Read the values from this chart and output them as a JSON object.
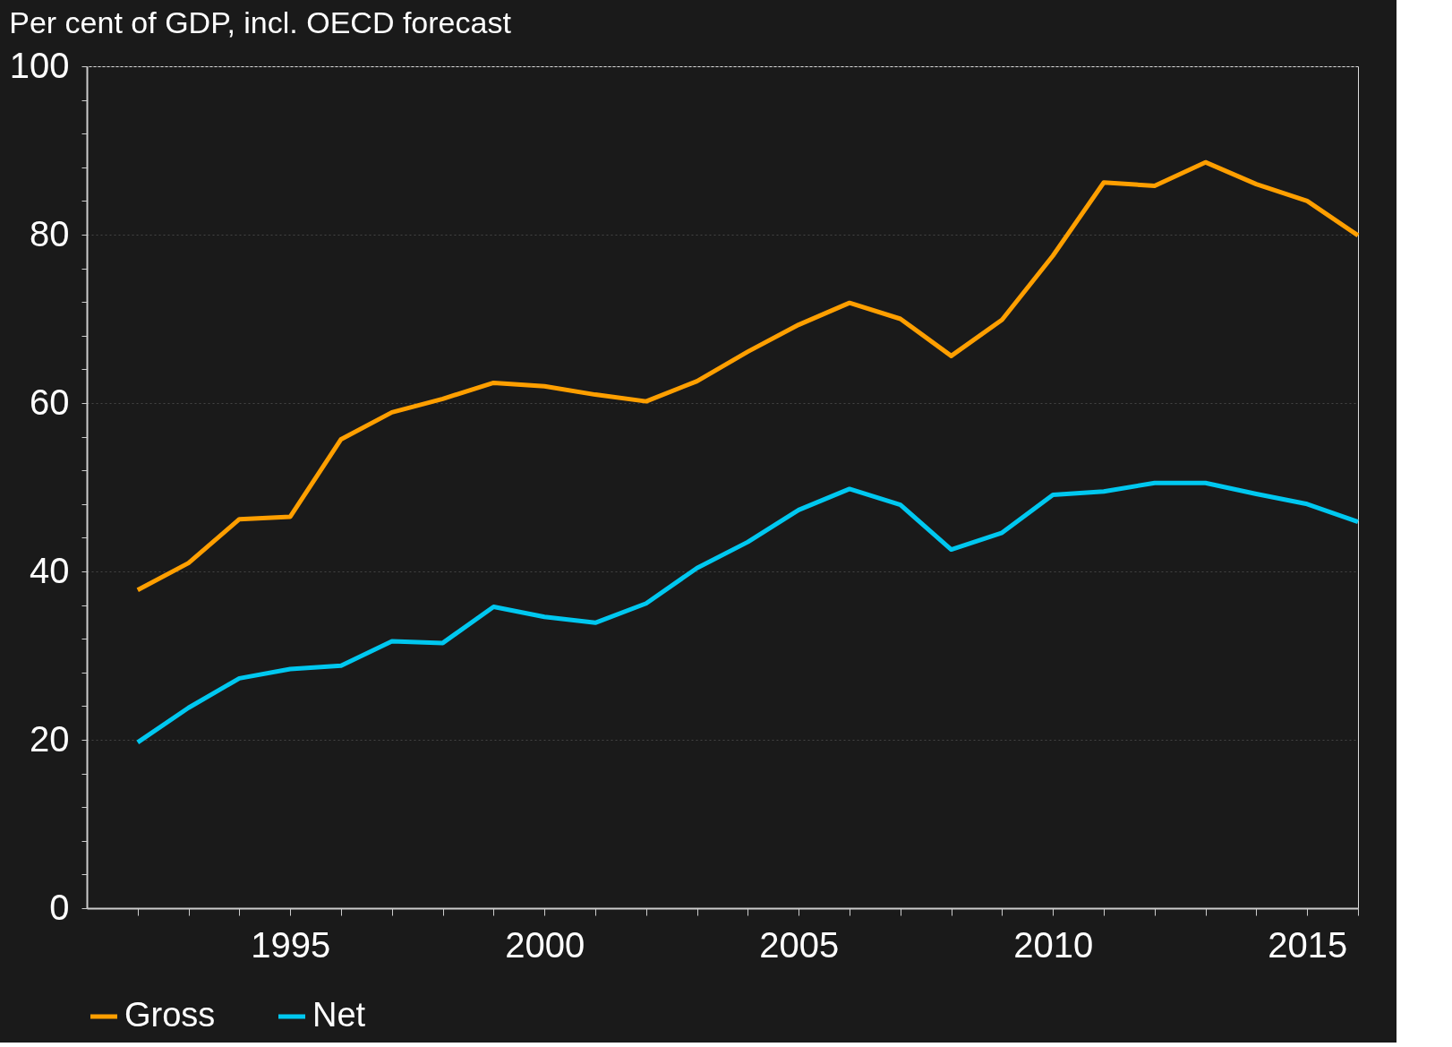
{
  "chart_data": {
    "type": "line",
    "title": "Per cent of GDP, incl. OECD forecast",
    "x": [
      1992,
      1993,
      1994,
      1995,
      1996,
      1997,
      1998,
      1999,
      2000,
      2001,
      2002,
      2003,
      2004,
      2005,
      2006,
      2007,
      2008,
      2009,
      2010,
      2011,
      2012,
      2013,
      2014,
      2015,
      2016
    ],
    "series": [
      {
        "name": "Gross",
        "color": "#ff9f00",
        "values": [
          37.8,
          41,
          46.2,
          46.5,
          55.7,
          58.9,
          60.5,
          62.4,
          62.0,
          61.0,
          60.2,
          62.6,
          66.1,
          69.3,
          71.9,
          70.0,
          65.6,
          69.9,
          77.5,
          86.2,
          85.8,
          88.6,
          86.0,
          84.0,
          79.9
        ]
      },
      {
        "name": "Net",
        "color": "#00c8f0",
        "values": [
          19.7,
          23.8,
          27.3,
          28.4,
          28.8,
          31.7,
          31.5,
          35.8,
          34.6,
          33.9,
          36.2,
          40.4,
          43.5,
          47.3,
          49.8,
          47.9,
          42.6,
          44.6,
          49.1,
          49.5,
          50.5,
          50.5,
          49.2,
          48.0,
          45.9
        ]
      }
    ],
    "xlim": [
      1991,
      2016
    ],
    "xticks": [
      {
        "value": 1992,
        "label": null
      },
      {
        "value": 1993,
        "label": null
      },
      {
        "value": 1994,
        "label": null
      },
      1995,
      {
        "value": 1996,
        "label": null
      },
      {
        "value": 1997,
        "label": null
      },
      {
        "value": 1998,
        "label": null
      },
      {
        "value": 1999,
        "label": null
      },
      2000,
      {
        "value": 2001,
        "label": null
      },
      {
        "value": 2002,
        "label": null
      },
      {
        "value": 2003,
        "label": null
      },
      {
        "value": 2004,
        "label": null
      },
      2005,
      {
        "value": 2006,
        "label": null
      },
      {
        "value": 2007,
        "label": null
      },
      {
        "value": 2008,
        "label": null
      },
      {
        "value": 2009,
        "label": null
      },
      2010,
      {
        "value": 2011,
        "label": null
      },
      {
        "value": 2012,
        "label": null
      },
      {
        "value": 2013,
        "label": null
      },
      {
        "value": 2014,
        "label": null
      },
      2015,
      {
        "value": 2016,
        "label": null
      }
    ],
    "ylim": [
      0,
      100
    ],
    "yticks": [
      0,
      {
        "value": 4,
        "label": null
      },
      {
        "value": 8,
        "label": null
      },
      {
        "value": 12,
        "label": null
      },
      {
        "value": 16,
        "label": null
      },
      20,
      {
        "value": 24,
        "label": null
      },
      {
        "value": 28,
        "label": null
      },
      {
        "value": 32,
        "label": null
      },
      {
        "value": 36,
        "label": null
      },
      40,
      {
        "value": 44,
        "label": null
      },
      {
        "value": 48,
        "label": null
      },
      {
        "value": 52,
        "label": null
      },
      {
        "value": 56,
        "label": null
      },
      60,
      {
        "value": 64,
        "label": null
      },
      {
        "value": 68,
        "label": null
      },
      {
        "value": 72,
        "label": null
      },
      {
        "value": 76,
        "label": null
      },
      80,
      {
        "value": 84,
        "label": null
      },
      {
        "value": 88,
        "label": null
      },
      {
        "value": 92,
        "label": null
      },
      {
        "value": 96,
        "label": null
      },
      100
    ],
    "grid": "y",
    "legend": "bottom left",
    "line_style": "solid",
    "marker": "none"
  }
}
